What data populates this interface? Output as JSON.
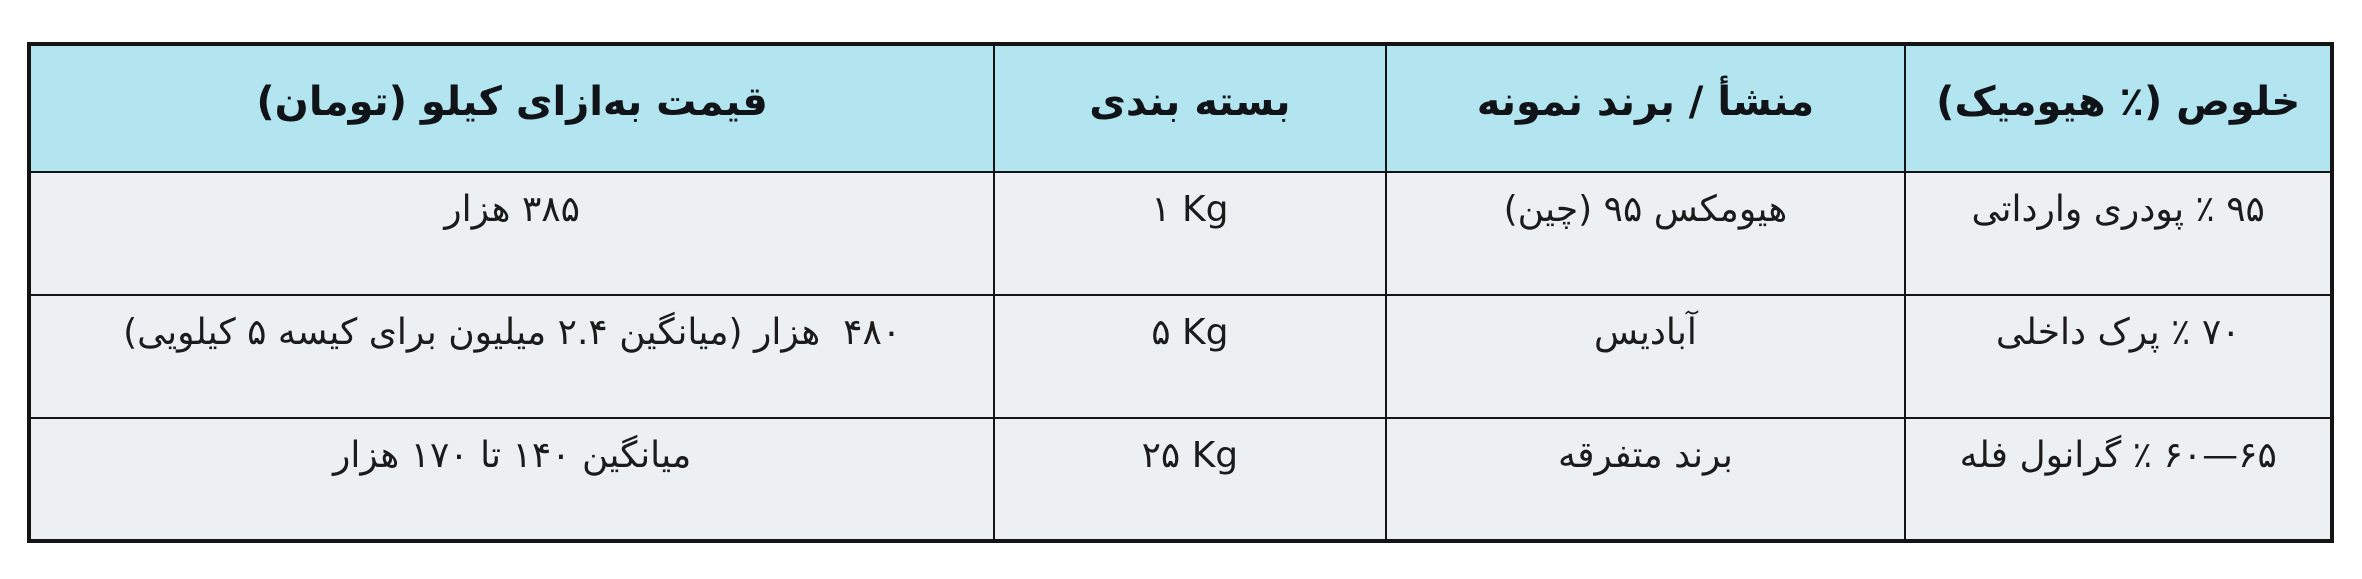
{
  "table": {
    "title_semantic": "humic-acid-price-table",
    "colors": {
      "header_bg": "#b2e5ef",
      "body_bg": "#edf0f2",
      "border": "#141414"
    },
    "header": {
      "purity": "خلوص (٪ هیومیک)",
      "brand": "منشأ / برند نمونه",
      "packaging": "بسته بندی",
      "price": "قیمت به‌ازای کیلو (تومان)"
    },
    "rows": [
      {
        "purity": "۹۵ ٪ پودری وارداتی",
        "brand": "هیومکس ۹۵ (چین)",
        "packaging": "۱ Kg",
        "price": "۳۸۵ هزار"
      },
      {
        "purity": "۷۰ ٪ پرک داخلی",
        "brand": "آبادیس",
        "packaging": "۵ Kg",
        "price": "۴۸۰  هزار (میانگین ۲.۴ میلیون برای کیسه ۵ کیلویی)"
      },
      {
        "purity": "‎۶۰—۶۵‎ ٪ گرانول فله",
        "brand": "برند متفرقه",
        "packaging": "۲۵ Kg",
        "price": "میانگین ۱۴۰ تا ۱۷۰ هزار"
      }
    ]
  }
}
